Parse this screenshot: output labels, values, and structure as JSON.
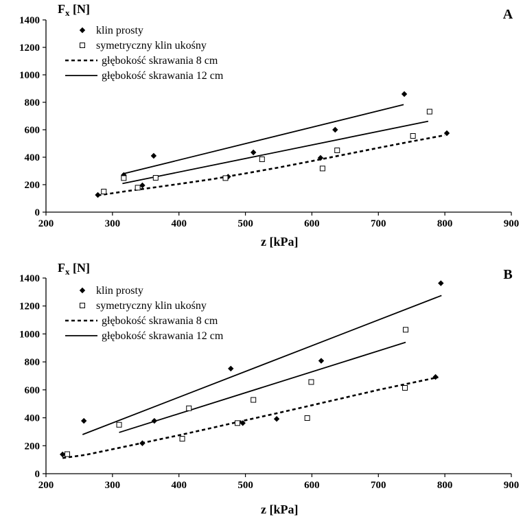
{
  "chart_data": [
    {
      "type": "scatter",
      "panel_label": "A",
      "xlabel": "z [kPa]",
      "ylabel_main": "F",
      "ylabel_sub": "x",
      "ylabel_unit": " [N]",
      "xlim": [
        200,
        900
      ],
      "ylim": [
        0,
        1400
      ],
      "x_ticks": [
        200,
        300,
        400,
        500,
        600,
        700,
        800,
        900
      ],
      "y_ticks": [
        0,
        200,
        400,
        600,
        800,
        1000,
        1200,
        1400
      ],
      "legend": {
        "placement": "top-left",
        "entries": [
          "klin prosty",
          "symetryczny klin ukośny",
          "głębokość skrawania  8 cm",
          "głębokość skrawania 12 cm"
        ]
      },
      "series": [
        {
          "name": "klin prosty",
          "marker": "diamond-filled",
          "points": [
            [
              278,
              125
            ],
            [
              345,
              195
            ],
            [
              317,
              270
            ],
            [
              362,
              410
            ],
            [
              474,
              258
            ],
            [
              512,
              435
            ],
            [
              613,
              395
            ],
            [
              635,
              600
            ],
            [
              739,
              860
            ],
            [
              803,
              575
            ]
          ]
        },
        {
          "name": "symetryczny klin ukośny",
          "marker": "square-open",
          "points": [
            [
              287,
              150
            ],
            [
              317,
              248
            ],
            [
              338,
              178
            ],
            [
              365,
              250
            ],
            [
              470,
              248
            ],
            [
              525,
              385
            ],
            [
              616,
              318
            ],
            [
              638,
              450
            ],
            [
              752,
              555
            ],
            [
              777,
              732
            ]
          ]
        }
      ],
      "trendlines": [
        {
          "style": "solid",
          "from": [
            315,
            278
          ],
          "to": [
            738,
            783
          ]
        },
        {
          "style": "solid",
          "from": [
            315,
            208
          ],
          "to": [
            775,
            662
          ]
        },
        {
          "style": "dashed",
          "points": [
            [
              278,
              122
            ],
            [
              320,
              152
            ],
            [
              360,
              178
            ],
            [
              400,
              205
            ],
            [
              450,
              240
            ],
            [
              500,
              282
            ],
            [
              550,
              325
            ],
            [
              600,
              372
            ],
            [
              650,
              420
            ],
            [
              700,
              468
            ],
            [
              750,
              515
            ],
            [
              800,
              560
            ]
          ]
        }
      ]
    },
    {
      "type": "scatter",
      "panel_label": "B",
      "xlabel": "z [kPa]",
      "ylabel_main": "F",
      "ylabel_sub": "x",
      "ylabel_unit": " [N]",
      "xlim": [
        200,
        900
      ],
      "ylim": [
        0,
        1400
      ],
      "x_ticks": [
        200,
        300,
        400,
        500,
        600,
        700,
        800,
        900
      ],
      "y_ticks": [
        0,
        200,
        400,
        600,
        800,
        1000,
        1200,
        1400
      ],
      "legend": {
        "placement": "top-left",
        "entries": [
          "klin prosty",
          "symetryczny klin ukośny",
          "głębokość skrawania  8 cm",
          "głębokość skrawania 12 cm"
        ]
      },
      "series": [
        {
          "name": "klin prosty",
          "marker": "diamond-filled",
          "points": [
            [
              225,
              138
            ],
            [
              257,
              378
            ],
            [
              345,
              218
            ],
            [
              363,
              378
            ],
            [
              478,
              752
            ],
            [
              496,
              362
            ],
            [
              547,
              392
            ],
            [
              614,
              808
            ],
            [
              786,
              692
            ],
            [
              794,
              1363
            ]
          ]
        },
        {
          "name": "symetryczny klin ukośny",
          "marker": "square-open",
          "points": [
            [
              232,
              140
            ],
            [
              310,
              350
            ],
            [
              405,
              250
            ],
            [
              415,
              468
            ],
            [
              488,
              362
            ],
            [
              512,
              528
            ],
            [
              593,
              398
            ],
            [
              599,
              656
            ],
            [
              740,
              614
            ],
            [
              741,
              1030
            ]
          ]
        }
      ],
      "trendlines": [
        {
          "style": "solid",
          "from": [
            255,
            280
          ],
          "to": [
            795,
            1275
          ]
        },
        {
          "style": "solid",
          "from": [
            310,
            295
          ],
          "to": [
            741,
            940
          ]
        },
        {
          "style": "dashed",
          "points": [
            [
              225,
              112
            ],
            [
              260,
              135
            ],
            [
              300,
              175
            ],
            [
              350,
              225
            ],
            [
              400,
              275
            ],
            [
              450,
              328
            ],
            [
              500,
              382
            ],
            [
              550,
              435
            ],
            [
              600,
              490
            ],
            [
              650,
              545
            ],
            [
              700,
              600
            ],
            [
              750,
              650
            ],
            [
              790,
              690
            ]
          ]
        }
      ]
    }
  ]
}
